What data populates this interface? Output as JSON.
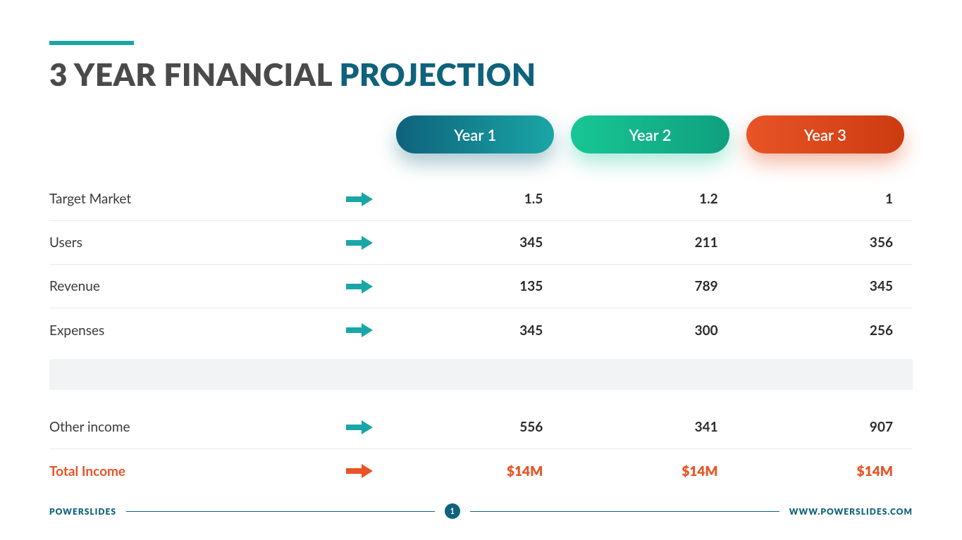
{
  "colors": {
    "teal": "#1aa6a6",
    "teal_dark": "#0e627c",
    "green": "#18c694",
    "green_dark": "#0fa07f",
    "orange": "#e85426",
    "orange_dark": "#cc3b10",
    "title_dark": "#4a4a4a",
    "text": "#3a3a3a",
    "border": "#e7e9ea",
    "spacer": "#f2f3f4",
    "footer": "#0e627c"
  },
  "title": {
    "part_a": "3 YEAR FINANCIAL ",
    "part_b": "PROJECTION"
  },
  "years": [
    "Year 1",
    "Year 2",
    "Year 3"
  ],
  "rows": [
    {
      "label": "Target Market",
      "arrow_color": "#1aa6a6",
      "values": [
        "1.5",
        "1.2",
        "1"
      ]
    },
    {
      "label": "Users",
      "arrow_color": "#1aa6a6",
      "values": [
        "345",
        "211",
        "356"
      ]
    },
    {
      "label": "Revenue",
      "arrow_color": "#1aa6a6",
      "values": [
        "135",
        "789",
        "345"
      ]
    },
    {
      "label": "Expenses",
      "arrow_color": "#1aa6a6",
      "values": [
        "345",
        "300",
        "256"
      ]
    }
  ],
  "other_income": {
    "label": "Other income",
    "arrow_color": "#1aa6a6",
    "values": [
      "556",
      "341",
      "907"
    ]
  },
  "total": {
    "label": "Total Income",
    "arrow_color": "#e85426",
    "label_color": "#e85426",
    "values": [
      "$14M",
      "$14M",
      "$14M"
    ]
  },
  "footer": {
    "brand_left": "POWERSLIDES",
    "page": "1",
    "brand_right": "WWW.POWERSLIDES.COM"
  }
}
